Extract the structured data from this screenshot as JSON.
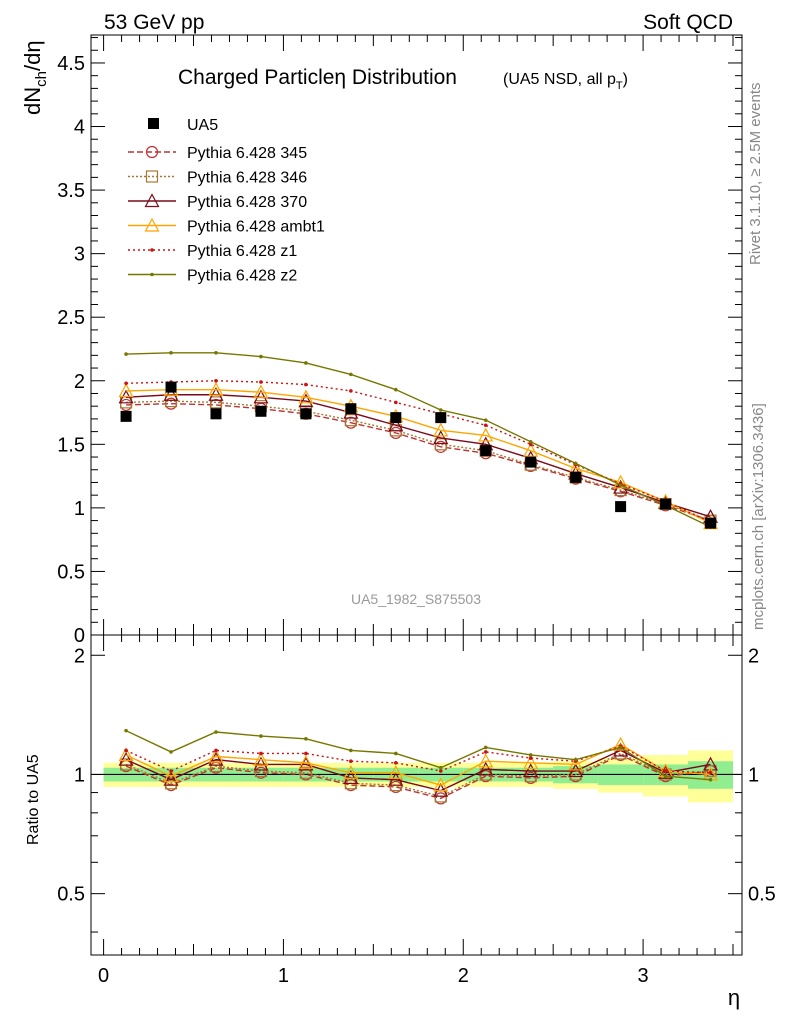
{
  "header": {
    "left": "53 GeV pp",
    "right": "Soft QCD"
  },
  "side": {
    "rivet": "Rivet 3.1.10, ≥ 2.5M events",
    "mcplots": "mcplots.cern.ch [arXiv:1306.3436]"
  },
  "colors": {
    "data": "#000000",
    "band_inner": "#90ee90",
    "band_outer": "#ffff99"
  },
  "chart_data": {
    "type": "line",
    "title": "Charged Particleη Distribution",
    "subtitle_prefix": "(UA5 NSD, all p",
    "subtitle_sub": "T",
    "subtitle_suffix": ")",
    "watermark": "UA5_1982_S875503",
    "xlabel": "η",
    "ylabel_main": "dN",
    "ylabel_sub": "ch",
    "ylabel_tail": "/dη",
    "ratio_ylabel": "Ratio to UA5",
    "xlim": [
      -0.07,
      3.55
    ],
    "ylim": [
      0,
      4.72
    ],
    "ratio_ylim": [
      0.35,
      2.25
    ],
    "x_ticks": [
      "0",
      "1",
      "2",
      "3"
    ],
    "y_ticks": [
      "0",
      "0.5",
      "1",
      "1.5",
      "2",
      "2.5",
      "3",
      "3.5",
      "4",
      "4.5"
    ],
    "ratio_ticks": [
      "0.5",
      "1",
      "2"
    ],
    "legend_position": "top-left",
    "data_series": {
      "name": "UA5",
      "x": [
        0.125,
        0.375,
        0.625,
        0.875,
        1.125,
        1.375,
        1.625,
        1.875,
        2.125,
        2.375,
        2.625,
        2.875,
        3.125,
        3.375
      ],
      "y": [
        1.72,
        1.95,
        1.74,
        1.76,
        1.74,
        1.78,
        1.71,
        1.71,
        1.45,
        1.36,
        1.24,
        1.01,
        1.03,
        0.88
      ],
      "band_inner": [
        0.04,
        0.04,
        0.04,
        0.04,
        0.04,
        0.04,
        0.04,
        0.04,
        0.04,
        0.04,
        0.05,
        0.06,
        0.06,
        0.08
      ],
      "band_outer": [
        0.07,
        0.07,
        0.07,
        0.07,
        0.07,
        0.07,
        0.07,
        0.07,
        0.07,
        0.07,
        0.08,
        0.1,
        0.12,
        0.15
      ]
    },
    "series": [
      {
        "name": "Pythia 6.428 345",
        "color": "#bb3333",
        "dash": "6,3",
        "marker": "circle",
        "y": [
          1.81,
          1.82,
          1.81,
          1.78,
          1.74,
          1.67,
          1.59,
          1.48,
          1.43,
          1.33,
          1.23,
          1.13,
          1.02,
          0.9
        ],
        "ratio": [
          1.05,
          0.94,
          1.04,
          1.01,
          1.0,
          0.94,
          0.93,
          0.87,
          0.99,
          0.98,
          0.99,
          1.12,
          0.99,
          1.02
        ]
      },
      {
        "name": "Pythia 6.428 346",
        "color": "#aa7733",
        "dash": "2,2",
        "marker": "square",
        "y": [
          1.83,
          1.84,
          1.83,
          1.8,
          1.76,
          1.69,
          1.61,
          1.5,
          1.45,
          1.34,
          1.24,
          1.14,
          1.03,
          0.9
        ],
        "ratio": [
          1.06,
          0.95,
          1.05,
          1.02,
          1.01,
          0.95,
          0.94,
          0.88,
          1.0,
          0.99,
          1.0,
          1.13,
          1.0,
          1.02
        ]
      },
      {
        "name": "Pythia 6.428 370",
        "color": "#7a0a1a",
        "dash": "",
        "marker": "triangle",
        "y": [
          1.87,
          1.89,
          1.89,
          1.87,
          1.84,
          1.75,
          1.65,
          1.55,
          1.5,
          1.39,
          1.27,
          1.16,
          1.04,
          0.93
        ],
        "ratio": [
          1.09,
          0.97,
          1.09,
          1.06,
          1.06,
          0.98,
          0.97,
          0.91,
          1.03,
          1.02,
          1.02,
          1.15,
          1.01,
          1.06
        ]
      },
      {
        "name": "Pythia 6.428 ambt1",
        "color": "#ffa500",
        "dash": "",
        "marker": "triangle",
        "y": [
          1.92,
          1.93,
          1.93,
          1.91,
          1.87,
          1.8,
          1.72,
          1.61,
          1.57,
          1.45,
          1.31,
          1.2,
          1.05,
          0.88
        ],
        "ratio": [
          1.12,
          0.99,
          1.11,
          1.09,
          1.07,
          1.01,
          1.01,
          0.94,
          1.08,
          1.07,
          1.06,
          1.19,
          1.02,
          1.0
        ]
      },
      {
        "name": "Pythia 6.428 z1",
        "color": "#cc1111",
        "dash": "2,3",
        "marker": "dot",
        "y": [
          1.98,
          1.99,
          2.0,
          1.99,
          1.97,
          1.92,
          1.83,
          1.74,
          1.65,
          1.5,
          1.34,
          1.19,
          1.05,
          0.89
        ],
        "ratio": [
          1.15,
          1.02,
          1.15,
          1.13,
          1.13,
          1.08,
          1.07,
          1.02,
          1.14,
          1.1,
          1.08,
          1.18,
          1.02,
          1.01
        ]
      },
      {
        "name": "Pythia 6.428 z2",
        "color": "#777700",
        "dash": "",
        "marker": "dot",
        "y": [
          2.21,
          2.22,
          2.22,
          2.19,
          2.14,
          2.05,
          1.93,
          1.77,
          1.69,
          1.52,
          1.35,
          1.18,
          1.02,
          0.85
        ],
        "ratio": [
          1.29,
          1.14,
          1.28,
          1.25,
          1.23,
          1.15,
          1.13,
          1.04,
          1.17,
          1.12,
          1.09,
          1.17,
          0.99,
          0.97
        ]
      }
    ]
  }
}
